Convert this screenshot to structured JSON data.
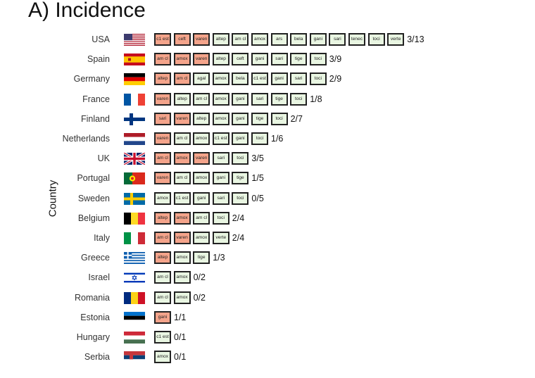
{
  "chart_data": {
    "type": "table",
    "title": "A) Incidence",
    "ylabel": "Country",
    "colors": {
      "highlight": "#f4a48b",
      "normal": "#e9f6e2",
      "border": "#222222"
    },
    "rows": [
      {
        "country": "USA",
        "flag": "flag-usa",
        "ratio": "3/13",
        "drugs": [
          {
            "name": "c1 est",
            "h": true
          },
          {
            "name": "ceft",
            "h": true
          },
          {
            "name": "varen",
            "h": true
          },
          {
            "name": "altep",
            "h": false
          },
          {
            "name": "am cl",
            "h": false
          },
          {
            "name": "amox",
            "h": false
          },
          {
            "name": "ars",
            "h": false
          },
          {
            "name": "bela",
            "h": false
          },
          {
            "name": "gani",
            "h": false
          },
          {
            "name": "sari",
            "h": false
          },
          {
            "name": "tenec",
            "h": false
          },
          {
            "name": "toci",
            "h": false
          },
          {
            "name": "verte",
            "h": false
          }
        ]
      },
      {
        "country": "Spain",
        "flag": "flag-spain",
        "ratio": "3/9",
        "drugs": [
          {
            "name": "am cl",
            "h": true
          },
          {
            "name": "amox",
            "h": true
          },
          {
            "name": "varen",
            "h": true
          },
          {
            "name": "altep",
            "h": false
          },
          {
            "name": "ceft",
            "h": false
          },
          {
            "name": "gani",
            "h": false
          },
          {
            "name": "sari",
            "h": false
          },
          {
            "name": "tige",
            "h": false
          },
          {
            "name": "toci",
            "h": false
          }
        ]
      },
      {
        "country": "Germany",
        "flag": "flag-germany",
        "ratio": "2/9",
        "drugs": [
          {
            "name": "altep",
            "h": true
          },
          {
            "name": "am cl",
            "h": true
          },
          {
            "name": "agal",
            "h": false
          },
          {
            "name": "amox",
            "h": false
          },
          {
            "name": "bela",
            "h": false
          },
          {
            "name": "c1 est",
            "h": false
          },
          {
            "name": "gani",
            "h": false
          },
          {
            "name": "sari",
            "h": false
          },
          {
            "name": "toci",
            "h": false
          }
        ]
      },
      {
        "country": "France",
        "flag": "flag-france",
        "ratio": "1/8",
        "drugs": [
          {
            "name": "varen",
            "h": true
          },
          {
            "name": "altep",
            "h": false
          },
          {
            "name": "am cl",
            "h": false
          },
          {
            "name": "amox",
            "h": false
          },
          {
            "name": "gani",
            "h": false
          },
          {
            "name": "sari",
            "h": false
          },
          {
            "name": "tige",
            "h": false
          },
          {
            "name": "toci",
            "h": false
          }
        ]
      },
      {
        "country": "Finland",
        "flag": "flag-finland",
        "ratio": "2/7",
        "drugs": [
          {
            "name": "sari",
            "h": true
          },
          {
            "name": "varen",
            "h": true
          },
          {
            "name": "altep",
            "h": false
          },
          {
            "name": "amox",
            "h": false
          },
          {
            "name": "gani",
            "h": false
          },
          {
            "name": "tige",
            "h": false
          },
          {
            "name": "toci",
            "h": false
          }
        ]
      },
      {
        "country": "Netherlands",
        "flag": "flag-netherlands",
        "ratio": "1/6",
        "drugs": [
          {
            "name": "varen",
            "h": true
          },
          {
            "name": "am cl",
            "h": false
          },
          {
            "name": "amox",
            "h": false
          },
          {
            "name": "c1 est",
            "h": false
          },
          {
            "name": "gani",
            "h": false
          },
          {
            "name": "toci",
            "h": false
          }
        ]
      },
      {
        "country": "UK",
        "flag": "flag-uk",
        "ratio": "3/5",
        "drugs": [
          {
            "name": "am cl",
            "h": true
          },
          {
            "name": "amox",
            "h": true
          },
          {
            "name": "varen",
            "h": true
          },
          {
            "name": "sari",
            "h": false
          },
          {
            "name": "toci",
            "h": false
          }
        ]
      },
      {
        "country": "Portugal",
        "flag": "flag-portugal",
        "ratio": "1/5",
        "drugs": [
          {
            "name": "varen",
            "h": true
          },
          {
            "name": "am cl",
            "h": false
          },
          {
            "name": "amox",
            "h": false
          },
          {
            "name": "gani",
            "h": false
          },
          {
            "name": "tige",
            "h": false
          }
        ]
      },
      {
        "country": "Sweden",
        "flag": "flag-sweden",
        "ratio": "0/5",
        "drugs": [
          {
            "name": "amox",
            "h": false
          },
          {
            "name": "c1 est",
            "h": false
          },
          {
            "name": "gani",
            "h": false
          },
          {
            "name": "sari",
            "h": false
          },
          {
            "name": "toci",
            "h": false
          }
        ]
      },
      {
        "country": "Belgium",
        "flag": "flag-belgium",
        "ratio": "2/4",
        "drugs": [
          {
            "name": "altep",
            "h": true
          },
          {
            "name": "amox",
            "h": true
          },
          {
            "name": "am cl",
            "h": false
          },
          {
            "name": "toci",
            "h": false
          }
        ]
      },
      {
        "country": "Italy",
        "flag": "flag-italy",
        "ratio": "2/4",
        "drugs": [
          {
            "name": "am cl",
            "h": true
          },
          {
            "name": "varen",
            "h": true
          },
          {
            "name": "amox",
            "h": false
          },
          {
            "name": "verte",
            "h": false
          }
        ]
      },
      {
        "country": "Greece",
        "flag": "flag-greece",
        "ratio": "1/3",
        "drugs": [
          {
            "name": "altep",
            "h": true
          },
          {
            "name": "amox",
            "h": false
          },
          {
            "name": "tige",
            "h": false
          }
        ]
      },
      {
        "country": "Israel",
        "flag": "flag-israel",
        "ratio": "0/2",
        "drugs": [
          {
            "name": "am cl",
            "h": false
          },
          {
            "name": "amox",
            "h": false
          }
        ]
      },
      {
        "country": "Romania",
        "flag": "flag-romania",
        "ratio": "0/2",
        "drugs": [
          {
            "name": "am cl",
            "h": false
          },
          {
            "name": "amox",
            "h": false
          }
        ]
      },
      {
        "country": "Estonia",
        "flag": "flag-estonia",
        "ratio": "1/1",
        "drugs": [
          {
            "name": "gani",
            "h": true
          }
        ]
      },
      {
        "country": "Hungary",
        "flag": "flag-hungary",
        "ratio": "0/1",
        "drugs": [
          {
            "name": "c1 est",
            "h": false
          }
        ]
      },
      {
        "country": "Serbia",
        "flag": "flag-serbia",
        "ratio": "0/1",
        "drugs": [
          {
            "name": "amox",
            "h": false
          }
        ]
      }
    ]
  }
}
